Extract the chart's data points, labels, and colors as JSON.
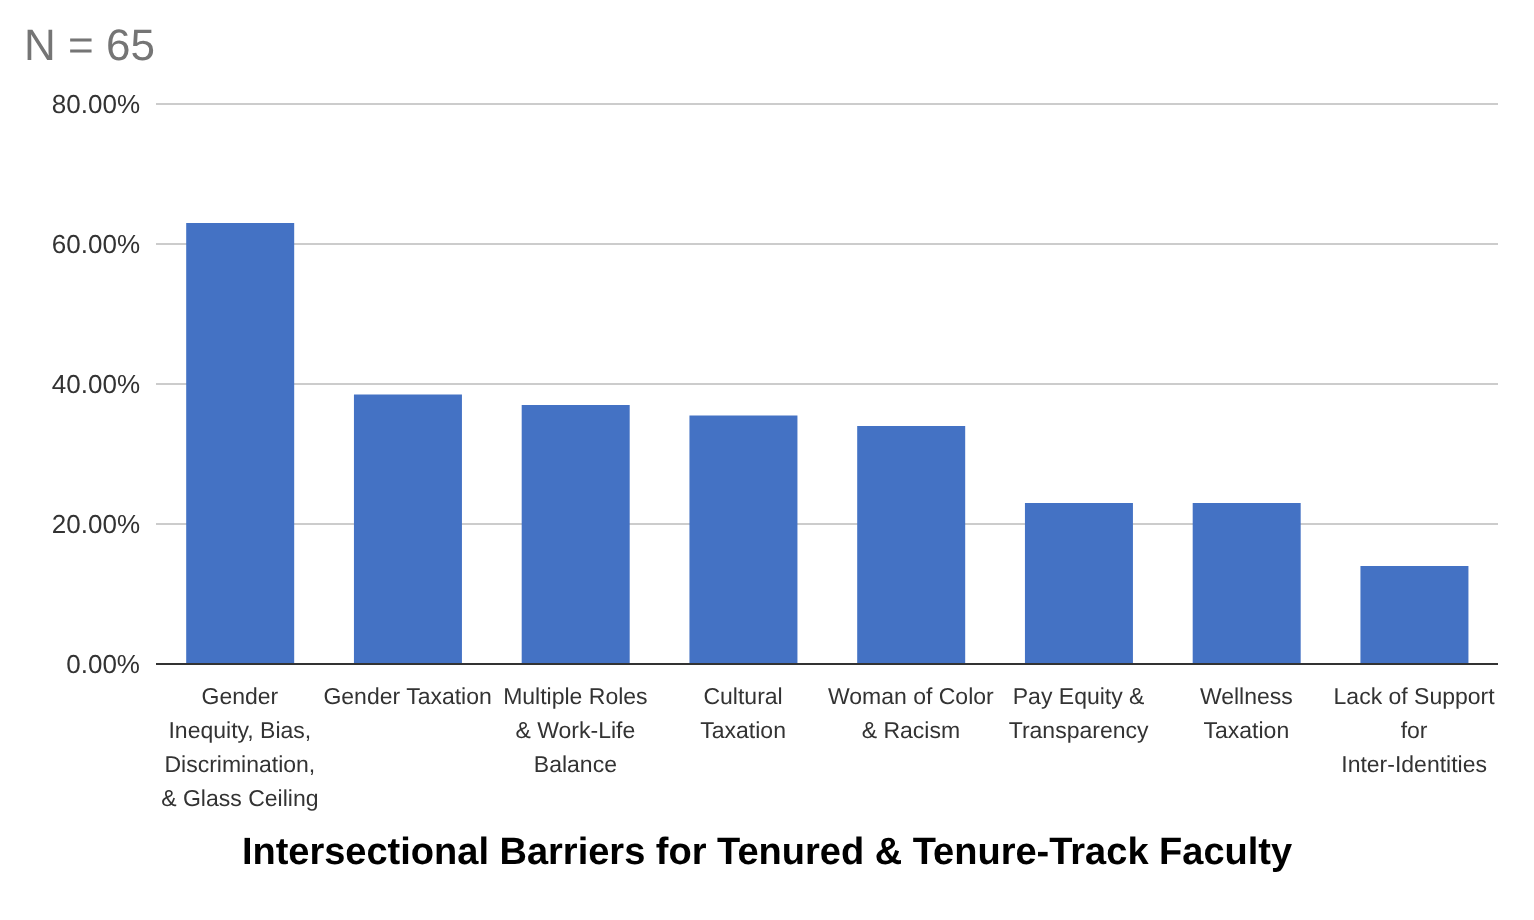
{
  "chart_data": {
    "type": "bar",
    "title": "Intersectional Barriers for Tenured & Tenure-Track Faculty",
    "subtitle": "N = 65",
    "categories": [
      "Gender Inequity, Bias, Discrimination, & Glass Ceiling",
      "Gender Taxation",
      "Multiple Roles & Work-Life Balance",
      "Cultural Taxation",
      "Woman of Color & Racism",
      "Pay Equity & Transparency",
      "Wellness Taxation",
      "Lack of Support for Inter-Identities"
    ],
    "values": [
      63,
      38.5,
      37,
      35.5,
      34,
      23,
      23,
      14
    ],
    "color": "#4472c4",
    "ylim": [
      0,
      80
    ],
    "yticks": [
      {
        "value": 0,
        "label": "0.00%"
      },
      {
        "value": 20,
        "label": "20.00%"
      },
      {
        "value": 40,
        "label": "40.00%"
      },
      {
        "value": 60,
        "label": "60.00%"
      },
      {
        "value": 80,
        "label": "80.00%"
      }
    ],
    "grid": "y",
    "legend": false
  }
}
